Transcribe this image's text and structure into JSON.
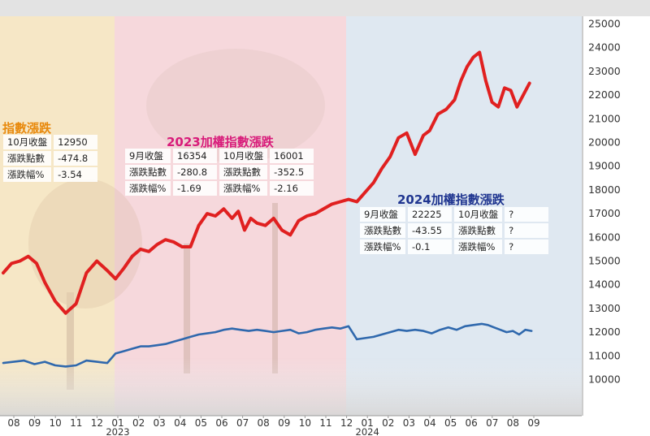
{
  "chart_data": {
    "type": "line",
    "title": "",
    "xlabel": "",
    "ylabel": "",
    "ylim": [
      9000,
      25500
    ],
    "y_ticks": [
      10000,
      11000,
      12000,
      13000,
      14000,
      15000,
      16000,
      17000,
      18000,
      19000,
      20000,
      21000,
      22000,
      23000,
      24000,
      25000
    ],
    "x_ticks": [
      "08",
      "09",
      "10",
      "11",
      "12",
      "01",
      "02",
      "03",
      "04",
      "05",
      "06",
      "07",
      "08",
      "09",
      "10",
      "11",
      "12",
      "01",
      "02",
      "03",
      "04",
      "05",
      "06",
      "07",
      "08",
      "09"
    ],
    "year_labels": [
      {
        "label": "2023",
        "month_index": 5
      },
      {
        "label": "2024",
        "month_index": 17
      }
    ],
    "grid": false,
    "legend": "none",
    "colors": {
      "taiex": "#e02020",
      "secondary": "#2f68ad",
      "axis_text": "#333333"
    },
    "series": [
      {
        "name": "",
        "color": "#e02020",
        "x": [
          0,
          0.4,
          0.8,
          1.2,
          1.6,
          2.0,
          2.5,
          3.0,
          3.5,
          4.0,
          4.5,
          5.0,
          5.4,
          5.8,
          6.2,
          6.6,
          7.0,
          7.4,
          7.8,
          8.2,
          8.6,
          9.0,
          9.4,
          9.8,
          10.2,
          10.6,
          11.0,
          11.3,
          11.6,
          11.9,
          12.2,
          12.6,
          13.0,
          13.4,
          13.8,
          14.2,
          14.6,
          15.0,
          15.4,
          15.8,
          16.2,
          16.6,
          17.0,
          17.4,
          17.8,
          18.2,
          18.6,
          19.0,
          19.4,
          19.8,
          20.2,
          20.5,
          20.9,
          21.3,
          21.7,
          22.0,
          22.3,
          22.6,
          22.9,
          23.2,
          23.5,
          23.8,
          24.1,
          24.4,
          24.7,
          25.0,
          25.3
        ],
        "values": [
          14500,
          14900,
          15000,
          15200,
          14900,
          14100,
          13300,
          12800,
          13200,
          14500,
          15000,
          14600,
          14250,
          14700,
          15200,
          15500,
          15400,
          15700,
          15900,
          15800,
          15600,
          15600,
          16500,
          17000,
          16900,
          17200,
          16800,
          17100,
          16300,
          16800,
          16600,
          16500,
          16800,
          16300,
          16100,
          16700,
          16900,
          17000,
          17200,
          17400,
          17500,
          17600,
          17500,
          17900,
          18300,
          18900,
          19400,
          20200,
          20400,
          19500,
          20300,
          20500,
          21200,
          21400,
          21800,
          22600,
          23200,
          23600,
          23800,
          22600,
          21700,
          21500,
          22300,
          22200,
          21500,
          22000,
          22500
        ]
      },
      {
        "name": "",
        "color": "#2f68ad",
        "x": [
          0,
          0.5,
          1.0,
          1.5,
          2.0,
          2.5,
          3.0,
          3.5,
          4.0,
          4.5,
          5.0,
          5.4,
          5.8,
          6.2,
          6.6,
          7.0,
          7.4,
          7.8,
          8.2,
          8.6,
          9.0,
          9.4,
          9.8,
          10.2,
          10.6,
          11.0,
          11.4,
          11.8,
          12.2,
          12.6,
          13.0,
          13.4,
          13.8,
          14.2,
          14.6,
          15.0,
          15.4,
          15.8,
          16.2,
          16.6,
          17.0,
          17.4,
          17.8,
          18.2,
          18.6,
          19.0,
          19.4,
          19.8,
          20.2,
          20.6,
          21.0,
          21.4,
          21.8,
          22.2,
          22.6,
          23.0,
          23.3,
          23.6,
          23.9,
          24.2,
          24.5,
          24.8,
          25.1,
          25.4
        ],
        "values": [
          10700,
          10750,
          10800,
          10650,
          10750,
          10600,
          10550,
          10600,
          10800,
          10750,
          10700,
          11100,
          11200,
          11300,
          11400,
          11400,
          11450,
          11500,
          11600,
          11700,
          11800,
          11900,
          11950,
          12000,
          12100,
          12150,
          12100,
          12050,
          12100,
          12050,
          12000,
          12050,
          12100,
          11950,
          12000,
          12100,
          12150,
          12200,
          12150,
          12250,
          11700,
          11750,
          11800,
          11900,
          12000,
          12100,
          12050,
          12100,
          12050,
          11950,
          12100,
          12200,
          12100,
          12250,
          12300,
          12350,
          12300,
          12200,
          12100,
          12000,
          12050,
          11900,
          12100,
          12050
        ]
      }
    ]
  },
  "panels": {
    "p2022": {
      "title": "指數漲跌",
      "rows": [
        [
          "10月收盤",
          "12950"
        ],
        [
          "漲跌點數",
          "-474.8"
        ],
        [
          "漲跌幅%",
          "-3.54"
        ]
      ]
    },
    "p2023": {
      "title": "2023加權指數漲跌",
      "rows": [
        [
          "9月收盤",
          "16354",
          "10月收盤",
          "16001"
        ],
        [
          "漲跌點數",
          "-280.8",
          "漲跌點數",
          "-352.5"
        ],
        [
          "漲跌幅%",
          "-1.69",
          "漲跌幅%",
          "-2.16"
        ]
      ]
    },
    "p2024": {
      "title": "2024加權指數漲跌",
      "rows": [
        [
          "9月收盤",
          "22225",
          "10月收盤",
          "?"
        ],
        [
          "漲跌點數",
          "-43.55",
          "漲跌點數",
          "?"
        ],
        [
          "漲跌幅%",
          "-0.1",
          "漲跌幅%",
          "?"
        ]
      ]
    }
  },
  "colors": {
    "title_2022": "#e8890c",
    "title_2023": "#d81b7a",
    "title_2024": "#1f3590",
    "band_2022": "#f6e7c6",
    "band_2023": "#f6d8dc",
    "band_2024": "#dfe8f1"
  }
}
